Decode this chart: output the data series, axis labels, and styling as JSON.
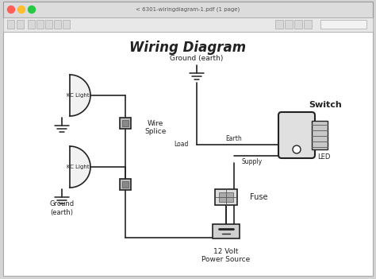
{
  "title": "Wiring Diagram",
  "window_bg": "#d4d4d4",
  "diagram_bg": "#ffffff",
  "line_color": "#222222",
  "text_color": "#222222",
  "window_title": "< 6301-wiringdiagram-1.pdf (1 page)",
  "labels": {
    "title": "Wiring Diagram",
    "kc_light": "KC Light",
    "wire_splice": "Wire\nSplice",
    "ground_top": "Ground (earth)",
    "ground_bottom": "Ground\n(earth)",
    "switch": "Switch",
    "load": "Load",
    "earth": "Earth",
    "supply": "Supply",
    "fuse": "Fuse",
    "power": "12 Volt\nPower Source",
    "led": "LED"
  }
}
